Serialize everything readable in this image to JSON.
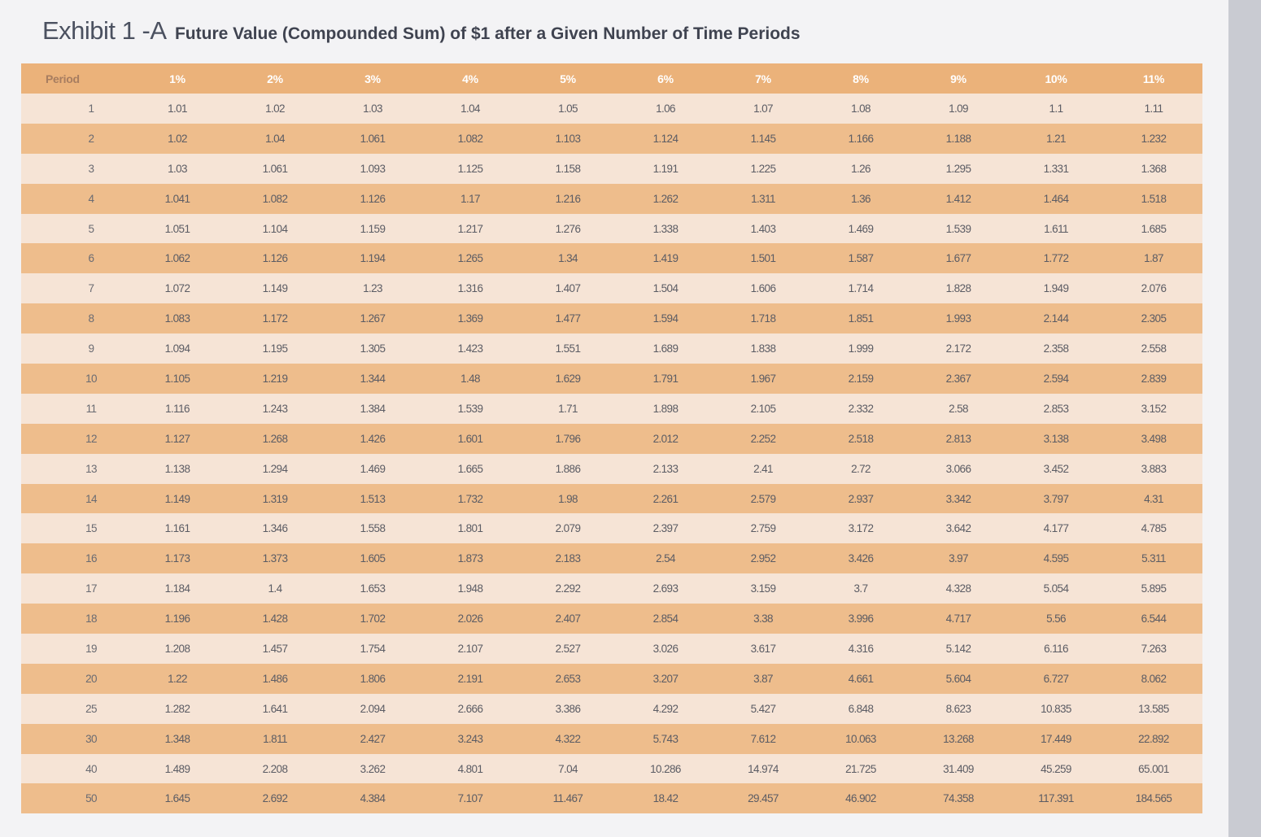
{
  "title": {
    "exhibit": "Exhibit 1 -A",
    "subtitle": "Future Value (Compounded Sum) of $1 after a Given Number of Time Periods"
  },
  "table": {
    "headers": [
      "Period",
      "1%",
      "2%",
      "3%",
      "4%",
      "5%",
      "6%",
      "7%",
      "8%",
      "9%",
      "10%",
      "11%"
    ],
    "rows": [
      [
        "1",
        "1.01",
        "1.02",
        "1.03",
        "1.04",
        "1.05",
        "1.06",
        "1.07",
        "1.08",
        "1.09",
        "1.1",
        "1.11"
      ],
      [
        "2",
        "1.02",
        "1.04",
        "1.061",
        "1.082",
        "1.103",
        "1.124",
        "1.145",
        "1.166",
        "1.188",
        "1.21",
        "1.232"
      ],
      [
        "3",
        "1.03",
        "1.061",
        "1.093",
        "1.125",
        "1.158",
        "1.191",
        "1.225",
        "1.26",
        "1.295",
        "1.331",
        "1.368"
      ],
      [
        "4",
        "1.041",
        "1.082",
        "1.126",
        "1.17",
        "1.216",
        "1.262",
        "1.311",
        "1.36",
        "1.412",
        "1.464",
        "1.518"
      ],
      [
        "5",
        "1.051",
        "1.104",
        "1.159",
        "1.217",
        "1.276",
        "1.338",
        "1.403",
        "1.469",
        "1.539",
        "1.611",
        "1.685"
      ],
      [
        "6",
        "1.062",
        "1.126",
        "1.194",
        "1.265",
        "1.34",
        "1.419",
        "1.501",
        "1.587",
        "1.677",
        "1.772",
        "1.87"
      ],
      [
        "7",
        "1.072",
        "1.149",
        "1.23",
        "1.316",
        "1.407",
        "1.504",
        "1.606",
        "1.714",
        "1.828",
        "1.949",
        "2.076"
      ],
      [
        "8",
        "1.083",
        "1.172",
        "1.267",
        "1.369",
        "1.477",
        "1.594",
        "1.718",
        "1.851",
        "1.993",
        "2.144",
        "2.305"
      ],
      [
        "9",
        "1.094",
        "1.195",
        "1.305",
        "1.423",
        "1.551",
        "1.689",
        "1.838",
        "1.999",
        "2.172",
        "2.358",
        "2.558"
      ],
      [
        "10",
        "1.105",
        "1.219",
        "1.344",
        "1.48",
        "1.629",
        "1.791",
        "1.967",
        "2.159",
        "2.367",
        "2.594",
        "2.839"
      ],
      [
        "11",
        "1.116",
        "1.243",
        "1.384",
        "1.539",
        "1.71",
        "1.898",
        "2.105",
        "2.332",
        "2.58",
        "2.853",
        "3.152"
      ],
      [
        "12",
        "1.127",
        "1.268",
        "1.426",
        "1.601",
        "1.796",
        "2.012",
        "2.252",
        "2.518",
        "2.813",
        "3.138",
        "3.498"
      ],
      [
        "13",
        "1.138",
        "1.294",
        "1.469",
        "1.665",
        "1.886",
        "2.133",
        "2.41",
        "2.72",
        "3.066",
        "3.452",
        "3.883"
      ],
      [
        "14",
        "1.149",
        "1.319",
        "1.513",
        "1.732",
        "1.98",
        "2.261",
        "2.579",
        "2.937",
        "3.342",
        "3.797",
        "4.31"
      ],
      [
        "15",
        "1.161",
        "1.346",
        "1.558",
        "1.801",
        "2.079",
        "2.397",
        "2.759",
        "3.172",
        "3.642",
        "4.177",
        "4.785"
      ],
      [
        "16",
        "1.173",
        "1.373",
        "1.605",
        "1.873",
        "2.183",
        "2.54",
        "2.952",
        "3.426",
        "3.97",
        "4.595",
        "5.311"
      ],
      [
        "17",
        "1.184",
        "1.4",
        "1.653",
        "1.948",
        "2.292",
        "2.693",
        "3.159",
        "3.7",
        "4.328",
        "5.054",
        "5.895"
      ],
      [
        "18",
        "1.196",
        "1.428",
        "1.702",
        "2.026",
        "2.407",
        "2.854",
        "3.38",
        "3.996",
        "4.717",
        "5.56",
        "6.544"
      ],
      [
        "19",
        "1.208",
        "1.457",
        "1.754",
        "2.107",
        "2.527",
        "3.026",
        "3.617",
        "4.316",
        "5.142",
        "6.116",
        "7.263"
      ],
      [
        "20",
        "1.22",
        "1.486",
        "1.806",
        "2.191",
        "2.653",
        "3.207",
        "3.87",
        "4.661",
        "5.604",
        "6.727",
        "8.062"
      ],
      [
        "25",
        "1.282",
        "1.641",
        "2.094",
        "2.666",
        "3.386",
        "4.292",
        "5.427",
        "6.848",
        "8.623",
        "10.835",
        "13.585"
      ],
      [
        "30",
        "1.348",
        "1.811",
        "2.427",
        "3.243",
        "4.322",
        "5.743",
        "7.612",
        "10.063",
        "13.268",
        "17.449",
        "22.892"
      ],
      [
        "40",
        "1.489",
        "2.208",
        "3.262",
        "4.801",
        "7.04",
        "10.286",
        "14.974",
        "21.725",
        "31.409",
        "45.259",
        "65.001"
      ],
      [
        "50",
        "1.645",
        "2.692",
        "4.384",
        "7.107",
        "11.467",
        "18.42",
        "29.457",
        "46.902",
        "74.358",
        "117.391",
        "184.565"
      ]
    ]
  },
  "colors": {
    "header_bg": "#ebb27a",
    "row_light": "#f6e4d6",
    "row_dark": "#eebd8c",
    "title_text": "#4b5160"
  }
}
